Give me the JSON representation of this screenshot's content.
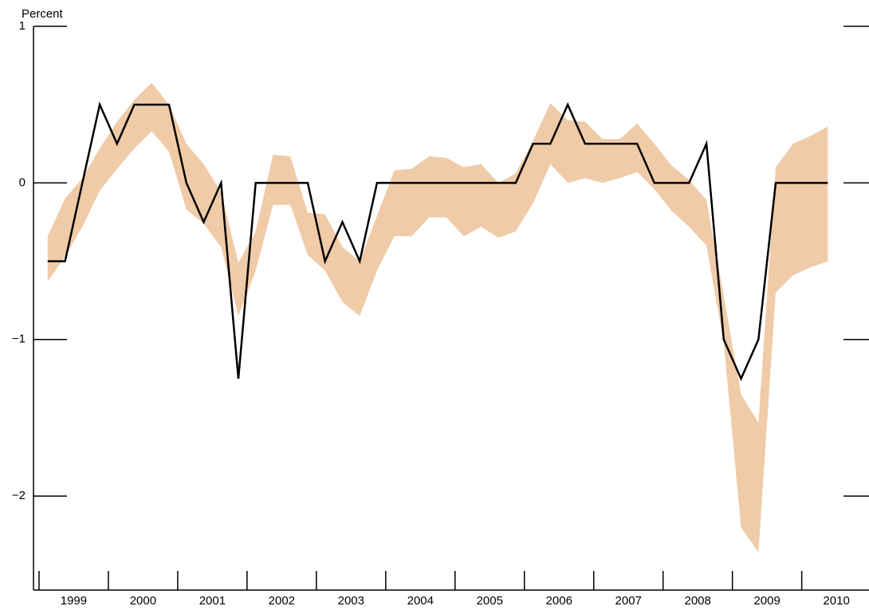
{
  "chart_data": {
    "type": "line",
    "y_label": "Percent",
    "xlim": [
      1998.92,
      2010.97
    ],
    "ylim": [
      -2.6,
      1
    ],
    "xticks": [
      1999,
      2000,
      2001,
      2002,
      2003,
      2004,
      2005,
      2006,
      2007,
      2008,
      2009,
      2010
    ],
    "yticks": [
      {
        "value": 1,
        "label": "1"
      },
      {
        "value": 0,
        "label": "0"
      },
      {
        "value": -1,
        "label": "−1"
      },
      {
        "value": -2,
        "label": "−2"
      }
    ],
    "x": [
      1999.125,
      1999.375,
      1999.625,
      1999.875,
      2000.125,
      2000.375,
      2000.625,
      2000.875,
      2001.125,
      2001.375,
      2001.625,
      2001.875,
      2002.125,
      2002.375,
      2002.625,
      2002.875,
      2003.125,
      2003.375,
      2003.625,
      2003.875,
      2004.125,
      2004.375,
      2004.625,
      2004.875,
      2005.125,
      2005.375,
      2005.625,
      2005.875,
      2006.125,
      2006.375,
      2006.625,
      2006.875,
      2007.125,
      2007.375,
      2007.625,
      2007.875,
      2008.125,
      2008.375,
      2008.625,
      2008.875,
      2009.125,
      2009.375,
      2009.625,
      2009.875,
      2010.125,
      2010.375
    ],
    "series": [
      {
        "color": "#000000",
        "values": [
          -0.5,
          -0.5,
          0,
          0.5,
          0.25,
          0.5,
          0.5,
          0.5,
          0,
          -0.25,
          0,
          -1.25,
          0,
          0,
          0,
          0,
          -0.5,
          -0.25,
          -0.5,
          0,
          0,
          0,
          0,
          0,
          0,
          0,
          0,
          0,
          0.25,
          0.25,
          0.5,
          0.25,
          0.25,
          0.25,
          0.25,
          0,
          0,
          0,
          0.25,
          -1,
          -1.25,
          -1,
          0,
          0,
          0,
          0
        ]
      }
    ],
    "band": {
      "color": "#f0cba8",
      "upper": [
        -0.34,
        -0.1,
        0.03,
        0.22,
        0.39,
        0.53,
        0.64,
        0.5,
        0.25,
        0.12,
        -0.06,
        -0.51,
        -0.31,
        0.18,
        0.17,
        -0.19,
        -0.2,
        -0.41,
        -0.5,
        -0.21,
        0.08,
        0.09,
        0.17,
        0.16,
        0.1,
        0.12,
        0,
        0.06,
        0.27,
        0.51,
        0.4,
        0.39,
        0.28,
        0.28,
        0.38,
        0.25,
        0.11,
        0.02,
        -0.11,
        -0.72,
        -1.35,
        -1.53,
        0.1,
        0.25,
        0.3,
        0.36
      ],
      "lower": [
        -0.63,
        -0.47,
        -0.28,
        -0.05,
        0.09,
        0.22,
        0.33,
        0.2,
        -0.17,
        -0.26,
        -0.41,
        -0.85,
        -0.56,
        -0.14,
        -0.14,
        -0.46,
        -0.56,
        -0.76,
        -0.85,
        -0.56,
        -0.34,
        -0.34,
        -0.22,
        -0.22,
        -0.34,
        -0.28,
        -0.35,
        -0.31,
        -0.13,
        0.12,
        0,
        0.03,
        0,
        0.03,
        0.07,
        -0.04,
        -0.18,
        -0.28,
        -0.4,
        -1.02,
        -2.2,
        -2.36,
        -0.7,
        -0.59,
        -0.54,
        -0.5
      ]
    }
  }
}
